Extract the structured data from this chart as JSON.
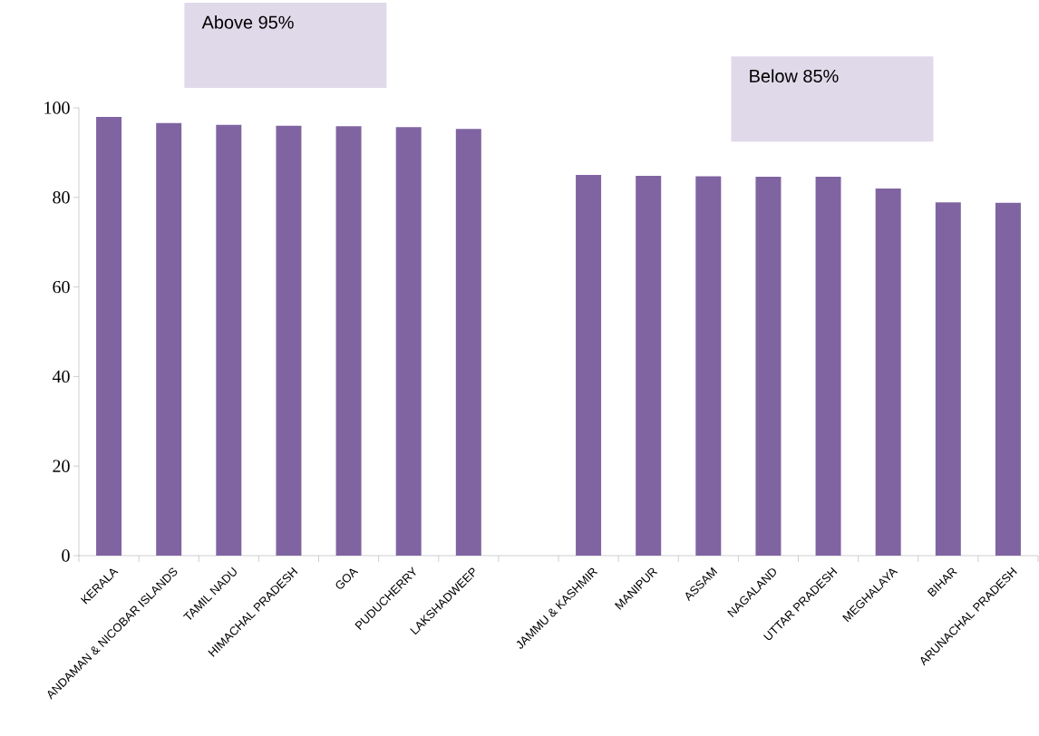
{
  "chart_data": {
    "type": "bar",
    "categories": [
      "KERALA",
      "ANDAMAN & NICOBAR ISLANDS",
      "TAMIL NADU",
      "HIMACHAL PRADESH",
      "GOA",
      "PUDUCHERRY",
      "LAKSHADWEEP",
      null,
      "JAMMU & KASHMIR",
      "MANIPUR",
      "ASSAM",
      "NAGALAND",
      "UTTAR PRADESH",
      "MEGHALAYA",
      "BIHAR",
      "ARUNACHAL PRADESH"
    ],
    "values": [
      98.0,
      96.6,
      96.2,
      96.0,
      95.9,
      95.7,
      95.3,
      null,
      85.0,
      84.8,
      84.7,
      84.6,
      84.6,
      82.0,
      78.9,
      78.8
    ],
    "color": "#8064a2",
    "ylim": [
      0,
      100
    ],
    "yticks": [
      0,
      20,
      40,
      60,
      80,
      100
    ],
    "annotations": [
      "Above 95%",
      "Below 85%"
    ]
  }
}
